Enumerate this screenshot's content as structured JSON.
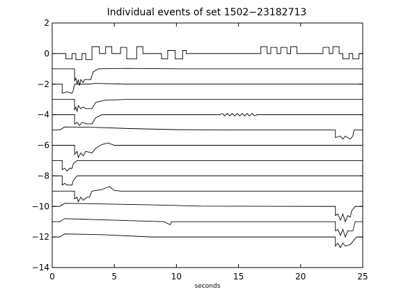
{
  "chart_data": {
    "type": "line",
    "title": "Individual events of set 1502−23182713",
    "xlabel": "seconds",
    "ylabel": "",
    "xlim": [
      0,
      25
    ],
    "ylim": [
      -14,
      2
    ],
    "xticks": [
      "0",
      "5",
      "10",
      "15",
      "20",
      "25"
    ],
    "yticks": [
      "2",
      "0",
      "−2",
      "−4",
      "−6",
      "−8",
      "−10",
      "−12",
      "−14"
    ],
    "grid": false,
    "legend": "none",
    "line_color": "#000000",
    "series": [
      {
        "baseline": 0.0,
        "points": [
          [
            0,
            0
          ],
          [
            1.1,
            0
          ],
          [
            1.1,
            -0.35
          ],
          [
            1.6,
            -0.35
          ],
          [
            1.6,
            0
          ],
          [
            1.9,
            0
          ],
          [
            1.9,
            -0.4
          ],
          [
            2.4,
            -0.4
          ],
          [
            2.4,
            0
          ],
          [
            2.7,
            0
          ],
          [
            2.7,
            -0.4
          ],
          [
            3.2,
            -0.4
          ],
          [
            3.2,
            0.45
          ],
          [
            3.8,
            0.45
          ],
          [
            3.8,
            0
          ],
          [
            4.3,
            0
          ],
          [
            4.3,
            0.45
          ],
          [
            4.8,
            0.45
          ],
          [
            4.8,
            0
          ],
          [
            5.5,
            0
          ],
          [
            5.5,
            0.4
          ],
          [
            6,
            0.4
          ],
          [
            6,
            -0.35
          ],
          [
            6.8,
            -0.35
          ],
          [
            6.8,
            0.45
          ],
          [
            7.3,
            0.45
          ],
          [
            7.3,
            0
          ],
          [
            8.8,
            0
          ],
          [
            8.8,
            -0.35
          ],
          [
            9.3,
            -0.35
          ],
          [
            9.3,
            0.2
          ],
          [
            9.9,
            0.2
          ],
          [
            9.9,
            -0.35
          ],
          [
            10.5,
            -0.35
          ],
          [
            10.5,
            0.2
          ],
          [
            10.8,
            0.2
          ],
          [
            10.8,
            0
          ],
          [
            16.8,
            0
          ],
          [
            16.8,
            0.45
          ],
          [
            17.3,
            0.45
          ],
          [
            17.3,
            0
          ],
          [
            17.6,
            0
          ],
          [
            17.6,
            0.4
          ],
          [
            18.1,
            0.4
          ],
          [
            18.1,
            0
          ],
          [
            18.4,
            0
          ],
          [
            18.4,
            0.4
          ],
          [
            18.9,
            0.4
          ],
          [
            18.9,
            0
          ],
          [
            19.2,
            0
          ],
          [
            19.2,
            0.45
          ],
          [
            19.7,
            0.45
          ],
          [
            19.7,
            0
          ],
          [
            21.8,
            0
          ],
          [
            21.8,
            0.4
          ],
          [
            22.3,
            0.4
          ],
          [
            22.3,
            0
          ],
          [
            22.6,
            0
          ],
          [
            22.6,
            0.45
          ],
          [
            23.1,
            0.45
          ],
          [
            23.1,
            0
          ],
          [
            23.4,
            0
          ],
          [
            23.4,
            -0.35
          ],
          [
            23.9,
            -0.35
          ],
          [
            23.9,
            0
          ],
          [
            24.2,
            0
          ],
          [
            24.2,
            -0.35
          ],
          [
            24.7,
            -0.35
          ],
          [
            24.7,
            0
          ],
          [
            25,
            0
          ]
        ]
      },
      {
        "baseline": -1.0,
        "points": [
          [
            0,
            -1
          ],
          [
            1.8,
            -1
          ],
          [
            1.8,
            -1.8
          ],
          [
            1.9,
            -1.6
          ],
          [
            2.0,
            -2.0
          ],
          [
            2.1,
            -1.7
          ],
          [
            2.2,
            -2.1
          ],
          [
            2.3,
            -1.7
          ],
          [
            2.5,
            -1.9
          ],
          [
            2.6,
            -1.7
          ],
          [
            3.1,
            -1.7
          ],
          [
            3.3,
            -1.2
          ],
          [
            3.7,
            -1.0
          ],
          [
            6,
            -0.97
          ],
          [
            10,
            -1.0
          ],
          [
            25,
            -1.0
          ]
        ]
      },
      {
        "baseline": -2.0,
        "points": [
          [
            0,
            -2
          ],
          [
            0.8,
            -2
          ],
          [
            0.8,
            -2.6
          ],
          [
            1.2,
            -2.5
          ],
          [
            1.6,
            -2.6
          ],
          [
            1.7,
            -2.4
          ],
          [
            1.8,
            -2.0
          ],
          [
            3,
            -2.0
          ],
          [
            3.4,
            -1.95
          ],
          [
            6,
            -2.0
          ],
          [
            25,
            -2.0
          ]
        ]
      },
      {
        "baseline": -3.0,
        "points": [
          [
            0,
            -3
          ],
          [
            1.8,
            -3
          ],
          [
            1.8,
            -3.7
          ],
          [
            1.9,
            -3.5
          ],
          [
            2.0,
            -3.8
          ],
          [
            2.1,
            -3.4
          ],
          [
            2.3,
            -3.6
          ],
          [
            2.5,
            -3.5
          ],
          [
            2.7,
            -3.6
          ],
          [
            3.2,
            -3.6
          ],
          [
            3.5,
            -3.2
          ],
          [
            4.2,
            -3.05
          ],
          [
            6,
            -3.0
          ],
          [
            25,
            -3.0
          ]
        ]
      },
      {
        "baseline": -4.0,
        "points": [
          [
            0,
            -4
          ],
          [
            1.8,
            -4
          ],
          [
            1.8,
            -4.6
          ],
          [
            2.0,
            -4.5
          ],
          [
            2.2,
            -4.7
          ],
          [
            2.4,
            -4.5
          ],
          [
            2.8,
            -4.6
          ],
          [
            3.2,
            -4.6
          ],
          [
            3.5,
            -4.2
          ],
          [
            4.0,
            -4.0
          ],
          [
            13.5,
            -4.0
          ],
          [
            13.7,
            -3.92
          ],
          [
            13.9,
            -4.08
          ],
          [
            14.1,
            -3.92
          ],
          [
            14.3,
            -4.08
          ],
          [
            14.5,
            -3.92
          ],
          [
            14.7,
            -4.08
          ],
          [
            14.9,
            -3.92
          ],
          [
            15.1,
            -4.08
          ],
          [
            15.3,
            -3.92
          ],
          [
            15.5,
            -4.08
          ],
          [
            15.7,
            -3.92
          ],
          [
            15.9,
            -4.08
          ],
          [
            16.1,
            -3.92
          ],
          [
            16.3,
            -4.08
          ],
          [
            16.5,
            -4.0
          ],
          [
            25,
            -4.0
          ]
        ]
      },
      {
        "baseline": -5.0,
        "points": [
          [
            0,
            -5
          ],
          [
            0.6,
            -5
          ],
          [
            1.0,
            -4.8
          ],
          [
            3,
            -4.82
          ],
          [
            6,
            -4.9
          ],
          [
            10,
            -4.98
          ],
          [
            15,
            -5.0
          ],
          [
            22.8,
            -5.0
          ],
          [
            22.8,
            -5.5
          ],
          [
            23.2,
            -5.4
          ],
          [
            23.4,
            -5.6
          ],
          [
            23.6,
            -5.4
          ],
          [
            24.0,
            -5.6
          ],
          [
            24.2,
            -5.4
          ],
          [
            24.3,
            -5.0
          ],
          [
            25,
            -5.0
          ]
        ]
      },
      {
        "baseline": -6.0,
        "points": [
          [
            0,
            -6
          ],
          [
            1.8,
            -6
          ],
          [
            1.8,
            -6.6
          ],
          [
            2.0,
            -6.4
          ],
          [
            2.1,
            -6.8
          ],
          [
            2.3,
            -6.5
          ],
          [
            2.5,
            -6.7
          ],
          [
            2.7,
            -6.4
          ],
          [
            3.2,
            -6.5
          ],
          [
            3.5,
            -6.2
          ],
          [
            4.0,
            -5.95
          ],
          [
            4.5,
            -5.85
          ],
          [
            5.0,
            -6.0
          ],
          [
            25,
            -6.0
          ]
        ]
      },
      {
        "baseline": -7.0,
        "points": [
          [
            0,
            -7
          ],
          [
            0.8,
            -7
          ],
          [
            0.8,
            -7.6
          ],
          [
            1.0,
            -7.5
          ],
          [
            1.2,
            -7.7
          ],
          [
            1.4,
            -7.5
          ],
          [
            1.6,
            -7.5
          ],
          [
            1.7,
            -7.2
          ],
          [
            2.0,
            -7.0
          ],
          [
            25,
            -7.0
          ]
        ]
      },
      {
        "baseline": -8.0,
        "points": [
          [
            0,
            -8
          ],
          [
            0.8,
            -8
          ],
          [
            0.8,
            -8.6
          ],
          [
            1.0,
            -8.5
          ],
          [
            1.2,
            -8.6
          ],
          [
            1.6,
            -8.6
          ],
          [
            1.7,
            -8.3
          ],
          [
            2.0,
            -8.0
          ],
          [
            25,
            -8.0
          ]
        ]
      },
      {
        "baseline": -9.0,
        "points": [
          [
            0,
            -9
          ],
          [
            1.8,
            -9
          ],
          [
            1.8,
            -9.5
          ],
          [
            2.0,
            -9.4
          ],
          [
            2.1,
            -9.7
          ],
          [
            2.3,
            -9.4
          ],
          [
            2.5,
            -9.6
          ],
          [
            2.8,
            -9.4
          ],
          [
            3.0,
            -9.4
          ],
          [
            3.2,
            -9.0
          ],
          [
            4.0,
            -8.9
          ],
          [
            4.6,
            -8.7
          ],
          [
            5.0,
            -8.95
          ],
          [
            5.5,
            -9.0
          ],
          [
            25,
            -9.0
          ]
        ]
      },
      {
        "baseline": -10.0,
        "points": [
          [
            0,
            -10
          ],
          [
            0.6,
            -10
          ],
          [
            1.0,
            -9.8
          ],
          [
            3,
            -9.82
          ],
          [
            8,
            -9.9
          ],
          [
            12,
            -9.98
          ],
          [
            22.8,
            -10.0
          ],
          [
            22.8,
            -10.6
          ],
          [
            23.0,
            -10.5
          ],
          [
            23.2,
            -10.9
          ],
          [
            23.4,
            -10.5
          ],
          [
            23.6,
            -11.0
          ],
          [
            23.8,
            -10.6
          ],
          [
            24.0,
            -10.7
          ],
          [
            24.1,
            -10.3
          ],
          [
            24.4,
            -10.0
          ],
          [
            25,
            -10.0
          ]
        ]
      },
      {
        "baseline": -11.0,
        "points": [
          [
            0,
            -11
          ],
          [
            0.6,
            -11
          ],
          [
            1.0,
            -10.8
          ],
          [
            3,
            -10.85
          ],
          [
            9,
            -11.0
          ],
          [
            9.5,
            -11.2
          ],
          [
            9.6,
            -11.0
          ],
          [
            22.8,
            -11.0
          ],
          [
            22.8,
            -11.6
          ],
          [
            23.0,
            -11.5
          ],
          [
            23.2,
            -11.9
          ],
          [
            23.4,
            -11.5
          ],
          [
            23.6,
            -12.0
          ],
          [
            23.8,
            -11.6
          ],
          [
            24.2,
            -11.6
          ],
          [
            24.4,
            -11.0
          ],
          [
            25,
            -11.0
          ]
        ]
      },
      {
        "baseline": -12.0,
        "points": [
          [
            0,
            -12
          ],
          [
            0.6,
            -12
          ],
          [
            1.0,
            -11.8
          ],
          [
            4,
            -11.85
          ],
          [
            8,
            -12.0
          ],
          [
            22.8,
            -12.0
          ],
          [
            22.8,
            -12.6
          ],
          [
            23.0,
            -12.4
          ],
          [
            23.2,
            -12.7
          ],
          [
            23.4,
            -12.4
          ],
          [
            23.6,
            -12.6
          ],
          [
            24.0,
            -12.5
          ],
          [
            24.2,
            -12.3
          ],
          [
            24.5,
            -12.0
          ],
          [
            25,
            -12.0
          ]
        ]
      }
    ]
  }
}
